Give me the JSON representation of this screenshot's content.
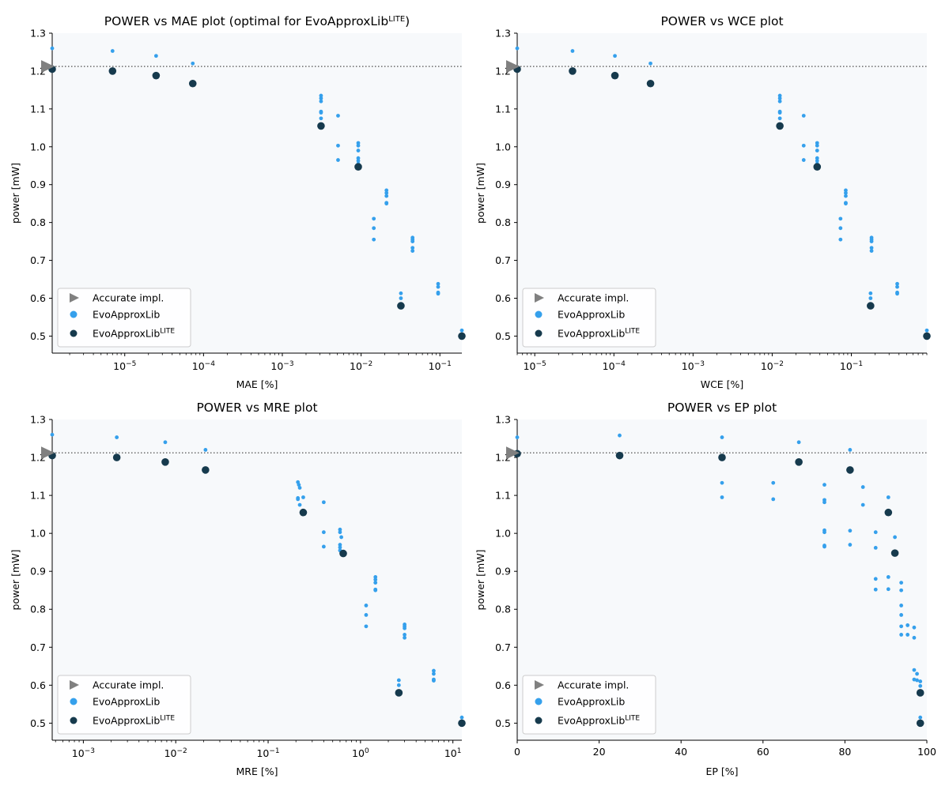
{
  "colors": {
    "evo": "#35a0ec",
    "lite": "#163a4d",
    "accurate": "#808080",
    "plot_bg": "#f7f9fb",
    "ref_line": "#6b6b6b"
  },
  "legend": {
    "accurate": "Accurate impl.",
    "evo": "EvoApproxLib",
    "lite_base": "EvoApproxLib",
    "lite_sup": "LITE"
  },
  "chart_data": [
    {
      "type": "scatter",
      "title": "POWER vs MAE plot (optimal for EvoApproxLib",
      "title_sup": "LITE",
      "title_suffix": ")",
      "xlabel": "MAE [%]",
      "ylabel": "power [mW]",
      "xscale": "log",
      "xlim": [
        1.2e-06,
        0.19
      ],
      "ylim": [
        0.455,
        1.3
      ],
      "x_ticks": [
        {
          "value": 1e-05,
          "base": "10",
          "exp": "−5"
        },
        {
          "value": 0.0001,
          "base": "10",
          "exp": "−4"
        },
        {
          "value": 0.001,
          "base": "10",
          "exp": "−3"
        },
        {
          "value": 0.01,
          "base": "10",
          "exp": "−2"
        },
        {
          "value": 0.1,
          "base": "10",
          "exp": "−1"
        }
      ],
      "y_ticks": [
        0.5,
        0.6,
        0.7,
        0.8,
        0.9,
        1.0,
        1.1,
        1.2,
        1.3
      ],
      "accurate_power": 1.212,
      "accurate_x": 1.2e-06,
      "series": [
        {
          "name": "EvoApproxLib",
          "points": [
            [
              1.2e-06,
              1.26
            ],
            [
              7e-06,
              1.253
            ],
            [
              2.5e-05,
              1.24
            ],
            [
              7.3e-05,
              1.22
            ],
            [
              0.0031,
              1.135
            ],
            [
              0.0031,
              1.128
            ],
            [
              0.0031,
              1.12
            ],
            [
              0.0031,
              1.093
            ],
            [
              0.0031,
              1.09
            ],
            [
              0.0031,
              1.075
            ],
            [
              0.0051,
              1.082
            ],
            [
              0.0051,
              1.003
            ],
            [
              0.0051,
              0.965
            ],
            [
              0.0092,
              1.01
            ],
            [
              0.0092,
              1.003
            ],
            [
              0.0092,
              0.99
            ],
            [
              0.0092,
              0.97
            ],
            [
              0.0092,
              0.963
            ],
            [
              0.0092,
              0.955
            ],
            [
              0.021,
              0.885
            ],
            [
              0.021,
              0.878
            ],
            [
              0.021,
              0.87
            ],
            [
              0.021,
              0.852
            ],
            [
              0.021,
              0.85
            ],
            [
              0.0145,
              0.81
            ],
            [
              0.0145,
              0.785
            ],
            [
              0.0145,
              0.755
            ],
            [
              0.045,
              0.76
            ],
            [
              0.045,
              0.755
            ],
            [
              0.045,
              0.75
            ],
            [
              0.045,
              0.733
            ],
            [
              0.045,
              0.725
            ],
            [
              0.032,
              0.613
            ],
            [
              0.032,
              0.6
            ],
            [
              0.095,
              0.638
            ],
            [
              0.095,
              0.63
            ],
            [
              0.095,
              0.615
            ],
            [
              0.095,
              0.612
            ],
            [
              0.19,
              0.515
            ]
          ]
        },
        {
          "name": "EvoApproxLibLITE",
          "points": [
            [
              1.2e-06,
              1.205
            ],
            [
              7e-06,
              1.2
            ],
            [
              2.5e-05,
              1.188
            ],
            [
              7.3e-05,
              1.167
            ],
            [
              0.0031,
              1.055
            ],
            [
              0.0092,
              0.947
            ],
            [
              0.032,
              0.58
            ],
            [
              0.19,
              0.5
            ]
          ]
        }
      ]
    },
    {
      "type": "scatter",
      "title": "POWER vs WCE plot",
      "xlabel": "WCE [%]",
      "ylabel": "power [mW]",
      "xscale": "log",
      "xlim": [
        6e-06,
        0.9
      ],
      "ylim": [
        0.455,
        1.3
      ],
      "x_ticks": [
        {
          "value": 1e-05,
          "base": "10",
          "exp": "−5"
        },
        {
          "value": 0.0001,
          "base": "10",
          "exp": "−4"
        },
        {
          "value": 0.001,
          "base": "10",
          "exp": "−3"
        },
        {
          "value": 0.01,
          "base": "10",
          "exp": "−2"
        },
        {
          "value": 0.1,
          "base": "10",
          "exp": "−1"
        }
      ],
      "y_ticks": [
        0.5,
        0.6,
        0.7,
        0.8,
        0.9,
        1.0,
        1.1,
        1.2,
        1.3
      ],
      "accurate_power": 1.212,
      "accurate_x": 6e-06,
      "series": [
        {
          "name": "EvoApproxLib",
          "points": [
            [
              6e-06,
              1.26
            ],
            [
              3e-05,
              1.253
            ],
            [
              0.000103,
              1.24
            ],
            [
              0.00029,
              1.22
            ],
            [
              0.0125,
              1.135
            ],
            [
              0.0125,
              1.128
            ],
            [
              0.0125,
              1.12
            ],
            [
              0.0125,
              1.093
            ],
            [
              0.0125,
              1.09
            ],
            [
              0.0125,
              1.075
            ],
            [
              0.025,
              1.082
            ],
            [
              0.025,
              1.003
            ],
            [
              0.025,
              0.965
            ],
            [
              0.037,
              1.01
            ],
            [
              0.037,
              1.003
            ],
            [
              0.037,
              0.99
            ],
            [
              0.037,
              0.97
            ],
            [
              0.037,
              0.963
            ],
            [
              0.037,
              0.955
            ],
            [
              0.085,
              0.885
            ],
            [
              0.085,
              0.878
            ],
            [
              0.085,
              0.87
            ],
            [
              0.085,
              0.852
            ],
            [
              0.085,
              0.85
            ],
            [
              0.073,
              0.81
            ],
            [
              0.073,
              0.785
            ],
            [
              0.073,
              0.755
            ],
            [
              0.18,
              0.76
            ],
            [
              0.18,
              0.755
            ],
            [
              0.18,
              0.75
            ],
            [
              0.18,
              0.733
            ],
            [
              0.18,
              0.725
            ],
            [
              0.175,
              0.613
            ],
            [
              0.175,
              0.6
            ],
            [
              0.38,
              0.638
            ],
            [
              0.38,
              0.63
            ],
            [
              0.38,
              0.615
            ],
            [
              0.38,
              0.612
            ],
            [
              0.9,
              0.515
            ]
          ]
        },
        {
          "name": "EvoApproxLibLITE",
          "points": [
            [
              6e-06,
              1.205
            ],
            [
              3e-05,
              1.2
            ],
            [
              0.000103,
              1.188
            ],
            [
              0.00029,
              1.167
            ],
            [
              0.0125,
              1.055
            ],
            [
              0.037,
              0.947
            ],
            [
              0.175,
              0.58
            ],
            [
              0.9,
              0.5
            ]
          ]
        }
      ]
    },
    {
      "type": "scatter",
      "title": "POWER vs MRE plot",
      "xlabel": "MRE [%]",
      "ylabel": "power [mW]",
      "xscale": "log",
      "xlim": [
        0.00046,
        12.5
      ],
      "ylim": [
        0.455,
        1.3
      ],
      "x_ticks": [
        {
          "value": 0.001,
          "base": "10",
          "exp": "−3"
        },
        {
          "value": 0.01,
          "base": "10",
          "exp": "−2"
        },
        {
          "value": 0.1,
          "base": "10",
          "exp": "−1"
        },
        {
          "value": 1,
          "base": "10",
          "exp": "0"
        },
        {
          "value": 10,
          "base": "10",
          "exp": "1"
        }
      ],
      "y_ticks": [
        0.5,
        0.6,
        0.7,
        0.8,
        0.9,
        1.0,
        1.1,
        1.2,
        1.3
      ],
      "accurate_power": 1.212,
      "accurate_x": 0.00046,
      "series": [
        {
          "name": "EvoApproxLib",
          "points": [
            [
              0.00046,
              1.26
            ],
            [
              0.0023,
              1.253
            ],
            [
              0.0077,
              1.24
            ],
            [
              0.021,
              1.22
            ],
            [
              0.21,
              1.135
            ],
            [
              0.215,
              1.128
            ],
            [
              0.22,
              1.12
            ],
            [
              0.21,
              1.093
            ],
            [
              0.21,
              1.09
            ],
            [
              0.22,
              1.075
            ],
            [
              0.24,
              1.095
            ],
            [
              0.4,
              1.082
            ],
            [
              0.4,
              1.003
            ],
            [
              0.4,
              0.965
            ],
            [
              0.6,
              1.01
            ],
            [
              0.6,
              1.003
            ],
            [
              0.62,
              0.99
            ],
            [
              0.6,
              0.97
            ],
            [
              0.6,
              0.963
            ],
            [
              0.6,
              0.955
            ],
            [
              1.45,
              0.885
            ],
            [
              1.45,
              0.878
            ],
            [
              1.45,
              0.87
            ],
            [
              1.45,
              0.852
            ],
            [
              1.45,
              0.85
            ],
            [
              1.15,
              0.81
            ],
            [
              1.15,
              0.785
            ],
            [
              1.15,
              0.755
            ],
            [
              3.0,
              0.76
            ],
            [
              3.0,
              0.755
            ],
            [
              3.0,
              0.75
            ],
            [
              3.0,
              0.733
            ],
            [
              3.0,
              0.725
            ],
            [
              2.6,
              0.613
            ],
            [
              2.6,
              0.6
            ],
            [
              6.2,
              0.638
            ],
            [
              6.2,
              0.63
            ],
            [
              6.2,
              0.615
            ],
            [
              6.2,
              0.612
            ],
            [
              12.5,
              0.515
            ]
          ]
        },
        {
          "name": "EvoApproxLibLITE",
          "points": [
            [
              0.00046,
              1.205
            ],
            [
              0.0023,
              1.2
            ],
            [
              0.0077,
              1.188
            ],
            [
              0.021,
              1.167
            ],
            [
              0.24,
              1.055
            ],
            [
              0.65,
              0.947
            ],
            [
              2.6,
              0.58
            ],
            [
              12.5,
              0.5
            ]
          ]
        }
      ]
    },
    {
      "type": "scatter",
      "title": "POWER vs EP plot",
      "xlabel": "EP [%]",
      "ylabel": "power [mW]",
      "xscale": "linear",
      "xlim": [
        0,
        100
      ],
      "ylim": [
        0.455,
        1.3
      ],
      "x_ticks": [
        {
          "value": 0,
          "label": "0"
        },
        {
          "value": 20,
          "label": "20"
        },
        {
          "value": 40,
          "label": "40"
        },
        {
          "value": 60,
          "label": "60"
        },
        {
          "value": 80,
          "label": "80"
        },
        {
          "value": 100,
          "label": "100"
        }
      ],
      "y_ticks": [
        0.5,
        0.6,
        0.7,
        0.8,
        0.9,
        1.0,
        1.1,
        1.2,
        1.3
      ],
      "accurate_power": 1.212,
      "accurate_x": 0,
      "series": [
        {
          "name": "EvoApproxLib",
          "points": [
            [
              0,
              1.253
            ],
            [
              25,
              1.258
            ],
            [
              50,
              1.253
            ],
            [
              68.75,
              1.24
            ],
            [
              81.25,
              1.22
            ],
            [
              50,
              1.133
            ],
            [
              50,
              1.095
            ],
            [
              62.5,
              1.133
            ],
            [
              62.5,
              1.09
            ],
            [
              75,
              1.128
            ],
            [
              75,
              1.088
            ],
            [
              75,
              1.082
            ],
            [
              75,
              1.008
            ],
            [
              75,
              1.003
            ],
            [
              75,
              0.968
            ],
            [
              75,
              0.965
            ],
            [
              81.25,
              1.007
            ],
            [
              81.25,
              0.97
            ],
            [
              84.4,
              1.122
            ],
            [
              84.4,
              1.075
            ],
            [
              87.5,
              1.003
            ],
            [
              87.5,
              0.962
            ],
            [
              87.5,
              0.88
            ],
            [
              87.5,
              0.852
            ],
            [
              90.6,
              1.095
            ],
            [
              90.6,
              0.885
            ],
            [
              90.6,
              0.853
            ],
            [
              92.2,
              0.99
            ],
            [
              93.75,
              0.87
            ],
            [
              93.75,
              0.85
            ],
            [
              93.75,
              0.81
            ],
            [
              93.75,
              0.785
            ],
            [
              93.75,
              0.755
            ],
            [
              93.75,
              0.733
            ],
            [
              95.3,
              0.758
            ],
            [
              95.3,
              0.733
            ],
            [
              96.9,
              0.752
            ],
            [
              96.9,
              0.725
            ],
            [
              96.9,
              0.64
            ],
            [
              96.9,
              0.615
            ],
            [
              97.6,
              0.63
            ],
            [
              97.6,
              0.613
            ],
            [
              98.4,
              0.61
            ],
            [
              98.4,
              0.598
            ],
            [
              98.4,
              0.515
            ]
          ]
        },
        {
          "name": "EvoApproxLibLITE",
          "points": [
            [
              0,
              1.21
            ],
            [
              25,
              1.205
            ],
            [
              50,
              1.2
            ],
            [
              68.75,
              1.188
            ],
            [
              81.25,
              1.167
            ],
            [
              90.6,
              1.055
            ],
            [
              92.2,
              0.948
            ],
            [
              98.4,
              0.58
            ],
            [
              98.4,
              0.5
            ]
          ]
        }
      ]
    }
  ]
}
